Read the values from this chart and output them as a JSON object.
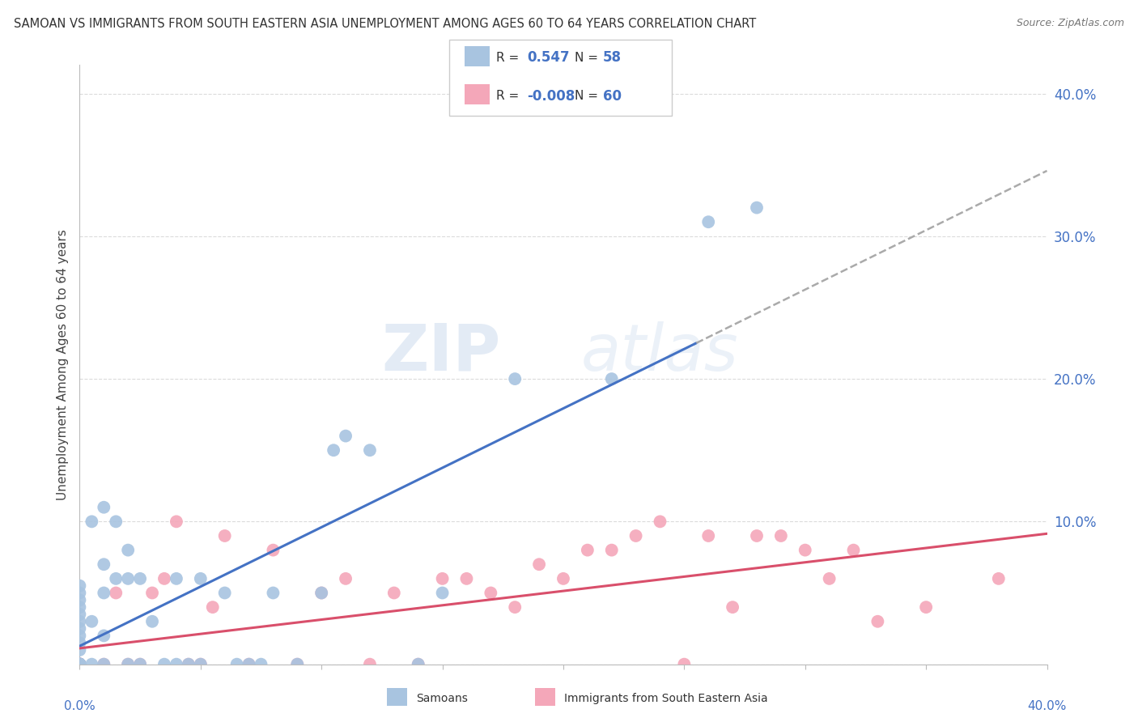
{
  "title": "SAMOAN VS IMMIGRANTS FROM SOUTH EASTERN ASIA UNEMPLOYMENT AMONG AGES 60 TO 64 YEARS CORRELATION CHART",
  "source": "Source: ZipAtlas.com",
  "ylabel": "Unemployment Among Ages 60 to 64 years",
  "xlim": [
    0.0,
    0.4
  ],
  "ylim": [
    0.0,
    0.42
  ],
  "R_samoans": 0.547,
  "N_samoans": 58,
  "R_immigrants": -0.008,
  "N_immigrants": 60,
  "color_samoans": "#a8c4e0",
  "color_immigrants": "#f4a7b9",
  "line_color_samoans": "#4472c4",
  "line_color_immigrants": "#d94f6b",
  "watermark_zip": "ZIP",
  "watermark_atlas": "atlas",
  "samoans_x": [
    0.0,
    0.0,
    0.0,
    0.0,
    0.0,
    0.0,
    0.0,
    0.0,
    0.0,
    0.0,
    0.0,
    0.0,
    0.0,
    0.0,
    0.0,
    0.0,
    0.0,
    0.0,
    0.0,
    0.0,
    0.005,
    0.005,
    0.005,
    0.01,
    0.01,
    0.01,
    0.01,
    0.01,
    0.015,
    0.015,
    0.02,
    0.02,
    0.02,
    0.025,
    0.025,
    0.03,
    0.035,
    0.04,
    0.04,
    0.045,
    0.05,
    0.05,
    0.06,
    0.065,
    0.07,
    0.075,
    0.08,
    0.09,
    0.1,
    0.105,
    0.11,
    0.12,
    0.14,
    0.15,
    0.18,
    0.22,
    0.26,
    0.28
  ],
  "samoans_y": [
    0.0,
    0.0,
    0.0,
    0.0,
    0.0,
    0.0,
    0.0,
    0.0,
    0.0,
    0.0,
    0.01,
    0.015,
    0.02,
    0.025,
    0.03,
    0.035,
    0.04,
    0.045,
    0.05,
    0.055,
    0.0,
    0.03,
    0.1,
    0.0,
    0.02,
    0.05,
    0.07,
    0.11,
    0.06,
    0.1,
    0.0,
    0.06,
    0.08,
    0.0,
    0.06,
    0.03,
    0.0,
    0.0,
    0.06,
    0.0,
    0.0,
    0.06,
    0.05,
    0.0,
    0.0,
    0.0,
    0.05,
    0.0,
    0.05,
    0.15,
    0.16,
    0.15,
    0.0,
    0.05,
    0.2,
    0.2,
    0.31,
    0.32
  ],
  "immigrants_x": [
    0.0,
    0.0,
    0.0,
    0.0,
    0.0,
    0.0,
    0.0,
    0.0,
    0.0,
    0.0,
    0.0,
    0.0,
    0.0,
    0.0,
    0.0,
    0.0,
    0.0,
    0.0,
    0.0,
    0.0,
    0.01,
    0.015,
    0.02,
    0.025,
    0.03,
    0.035,
    0.04,
    0.045,
    0.05,
    0.055,
    0.06,
    0.07,
    0.08,
    0.09,
    0.1,
    0.11,
    0.12,
    0.13,
    0.14,
    0.15,
    0.16,
    0.17,
    0.18,
    0.19,
    0.2,
    0.21,
    0.22,
    0.23,
    0.24,
    0.25,
    0.26,
    0.27,
    0.28,
    0.29,
    0.3,
    0.31,
    0.32,
    0.33,
    0.35,
    0.38
  ],
  "immigrants_y": [
    0.0,
    0.0,
    0.0,
    0.0,
    0.0,
    0.0,
    0.0,
    0.0,
    0.0,
    0.0,
    0.0,
    0.0,
    0.0,
    0.0,
    0.0,
    0.0,
    0.0,
    0.0,
    0.0,
    0.0,
    0.0,
    0.05,
    0.0,
    0.0,
    0.05,
    0.06,
    0.1,
    0.0,
    0.0,
    0.04,
    0.09,
    0.0,
    0.08,
    0.0,
    0.05,
    0.06,
    0.0,
    0.05,
    0.0,
    0.06,
    0.06,
    0.05,
    0.04,
    0.07,
    0.06,
    0.08,
    0.08,
    0.09,
    0.1,
    0.0,
    0.09,
    0.04,
    0.09,
    0.09,
    0.08,
    0.06,
    0.08,
    0.03,
    0.04,
    0.06
  ],
  "line_dash_start_x": 0.255,
  "line_dash_end_x": 0.4
}
